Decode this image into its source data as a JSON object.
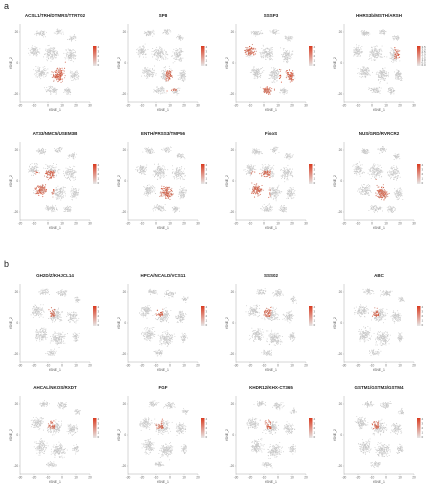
{
  "figure": {
    "panel_labels": [
      "a",
      "b"
    ]
  },
  "colors": {
    "cell_low": "#c8c8c8",
    "cell_high": "#d64a2c",
    "cb_low": "#e6e6e6",
    "cb_high": "#d93a1f"
  },
  "chart_data": [
    {
      "type": "scatter",
      "panel": "a",
      "title": "ACSL1/TRH/DTMRS/TTRT02",
      "xlabel": "tSNE_1",
      "ylabel": "tSNE_2",
      "xticks": [
        "-20",
        "-10",
        "0",
        "10",
        "20",
        "30"
      ],
      "yticks": [
        "20",
        "0",
        "-20"
      ],
      "colorbar_ticks": [
        "4",
        "3",
        "2",
        "1",
        "0"
      ],
      "legend": "right",
      "highlight": "mid-low"
    },
    {
      "type": "scatter",
      "panel": "a",
      "title": "SP8",
      "xlabel": "tSNE_1",
      "ylabel": "tSNE_2",
      "xticks": [
        "-20",
        "-10",
        "0",
        "10",
        "20",
        "30"
      ],
      "yticks": [
        "20",
        "0",
        "-20"
      ],
      "colorbar_ticks": [
        "4",
        "3",
        "2",
        "1",
        "0"
      ],
      "legend": "right",
      "highlight": "low-right"
    },
    {
      "type": "scatter",
      "panel": "a",
      "title": "SSSP3",
      "xlabel": "tSNE_1",
      "ylabel": "tSNE_2",
      "xticks": [
        "-20",
        "-10",
        "0",
        "10",
        "20",
        "30"
      ],
      "yticks": [
        "20",
        "0",
        "-20"
      ],
      "colorbar_ticks": [
        "4",
        "3",
        "2",
        "1",
        "0"
      ],
      "legend": "right",
      "highlight": "spread"
    },
    {
      "type": "scatter",
      "panel": "a",
      "title": "HHRS3b/MSTH/ARSH",
      "xlabel": "tSNE_1",
      "ylabel": "tSNE_2",
      "xticks": [
        "-20",
        "-10",
        "0",
        "10",
        "20",
        "30"
      ],
      "yticks": [
        "20",
        "0",
        "-20"
      ],
      "colorbar_ticks": [
        "3.5",
        "3.0",
        "2.5",
        "2.0",
        "1.5",
        "1.0",
        "0.5",
        "0.0"
      ],
      "legend": "right",
      "highlight": "right-few"
    },
    {
      "type": "scatter",
      "panel": "a",
      "title": "AT33/NMC5/USEM3B",
      "xlabel": "tSNE_1",
      "ylabel": "tSNE_2",
      "xticks": [
        "-20",
        "-10",
        "0",
        "10",
        "20",
        "30"
      ],
      "yticks": [
        "20",
        "0",
        "-20"
      ],
      "colorbar_ticks": [
        "4",
        "3",
        "2",
        "1",
        "0"
      ],
      "legend": "right",
      "highlight": "left-mid"
    },
    {
      "type": "scatter",
      "panel": "a",
      "title": "ENTH/PRSS3/TMP56",
      "xlabel": "tSNE_1",
      "ylabel": "tSNE_2",
      "xticks": [
        "-20",
        "-10",
        "0",
        "10",
        "20",
        "30"
      ],
      "yticks": [
        "20",
        "0",
        "-20"
      ],
      "colorbar_ticks": [
        "4",
        "3",
        "2",
        "1",
        "0"
      ],
      "legend": "right",
      "highlight": "mid-low"
    },
    {
      "type": "scatter",
      "panel": "a",
      "title": "FisoS",
      "xlabel": "tSNE_1",
      "ylabel": "tSNE_2",
      "xticks": [
        "-20",
        "-10",
        "0",
        "10",
        "20",
        "30"
      ],
      "yticks": [
        "20",
        "0",
        "-20"
      ],
      "colorbar_ticks": [
        "4",
        "3",
        "2",
        "1",
        "0"
      ],
      "legend": "right",
      "highlight": "left-mid"
    },
    {
      "type": "scatter",
      "panel": "a",
      "title": "NUS/GRD/RVRCR2",
      "xlabel": "tSNE_1",
      "ylabel": "tSNE_2",
      "xticks": [
        "-20",
        "-10",
        "0",
        "10",
        "20",
        "30"
      ],
      "yticks": [
        "20",
        "0",
        "-20"
      ],
      "colorbar_ticks": [
        "4",
        "3",
        "2",
        "1",
        "0"
      ],
      "legend": "right",
      "highlight": "mid-low"
    },
    {
      "type": "scatter",
      "panel": "b",
      "title": "GH2D/Z/KHJCL14",
      "xlabel": "tSNE_1",
      "ylabel": "tSNE_2",
      "xticks": [
        "-30",
        "-20",
        "-10",
        "0",
        "10",
        "20"
      ],
      "yticks": [
        "20",
        "0",
        "-20"
      ],
      "colorbar_ticks": [
        "4",
        "3",
        "2",
        "1",
        "0"
      ],
      "legend": "right",
      "highlight": "stripe"
    },
    {
      "type": "scatter",
      "panel": "b",
      "title": "HPCA/NCALD/VCS11",
      "xlabel": "tSNE_1",
      "ylabel": "tSNE_2",
      "xticks": [
        "-30",
        "-20",
        "-10",
        "0",
        "10",
        "20"
      ],
      "yticks": [
        "20",
        "0",
        "-20"
      ],
      "colorbar_ticks": [
        "4",
        "3",
        "2",
        "1",
        "0"
      ],
      "legend": "right",
      "highlight": "stripe"
    },
    {
      "type": "scatter",
      "panel": "b",
      "title": "SSS02",
      "xlabel": "tSNE_1",
      "ylabel": "tSNE_2",
      "xticks": [
        "-30",
        "-20",
        "-10",
        "0",
        "10",
        "20"
      ],
      "yticks": [
        "20",
        "0",
        "-20"
      ],
      "colorbar_ticks": [
        "4",
        "3",
        "2",
        "1",
        "0"
      ],
      "legend": "right",
      "highlight": "stripe"
    },
    {
      "type": "scatter",
      "panel": "b",
      "title": "ABC",
      "xlabel": "tSNE_1",
      "ylabel": "tSNE_2",
      "xticks": [
        "-30",
        "-20",
        "-10",
        "0",
        "10",
        "20"
      ],
      "yticks": [
        "20",
        "0",
        "-20"
      ],
      "colorbar_ticks": [
        "4",
        "3",
        "2",
        "1",
        "0"
      ],
      "legend": "right",
      "highlight": "stripe"
    },
    {
      "type": "scatter",
      "panel": "b",
      "title": "AHCAL/NKOS/RXDT",
      "xlabel": "tSNE_1",
      "ylabel": "tSNE_2",
      "xticks": [
        "-30",
        "-20",
        "-10",
        "0",
        "10",
        "20"
      ],
      "yticks": [
        "20",
        "0",
        "-20"
      ],
      "colorbar_ticks": [
        "4",
        "3",
        "2",
        "1",
        "0"
      ],
      "legend": "right",
      "highlight": "stripe"
    },
    {
      "type": "scatter",
      "panel": "b",
      "title": "FGF",
      "xlabel": "tSNE_1",
      "ylabel": "tSNE_2",
      "xticks": [
        "-30",
        "-20",
        "-10",
        "0",
        "10",
        "20"
      ],
      "yticks": [
        "20",
        "0",
        "-20"
      ],
      "colorbar_ticks": [
        "4",
        "3",
        "2",
        "1",
        "0"
      ],
      "legend": "right",
      "highlight": "stripe"
    },
    {
      "type": "scatter",
      "panel": "b",
      "title": "KHDR12/KHX-CT365",
      "xlabel": "tSNE_1",
      "ylabel": "tSNE_2",
      "xticks": [
        "-30",
        "-20",
        "-10",
        "0",
        "10",
        "20"
      ],
      "yticks": [
        "20",
        "0",
        "-20"
      ],
      "colorbar_ticks": [
        "4",
        "3",
        "2",
        "1",
        "0"
      ],
      "legend": "right",
      "highlight": "stripe"
    },
    {
      "type": "scatter",
      "panel": "b",
      "title": "GSTM1/GSTM3/GSTM4",
      "xlabel": "tSNE_1",
      "ylabel": "tSNE_2",
      "xticks": [
        "-30",
        "-20",
        "-10",
        "0",
        "10",
        "20"
      ],
      "yticks": [
        "20",
        "0",
        "-20"
      ],
      "colorbar_ticks": [
        "4",
        "3",
        "2",
        "1",
        "0"
      ],
      "legend": "right",
      "highlight": "stripe"
    }
  ]
}
